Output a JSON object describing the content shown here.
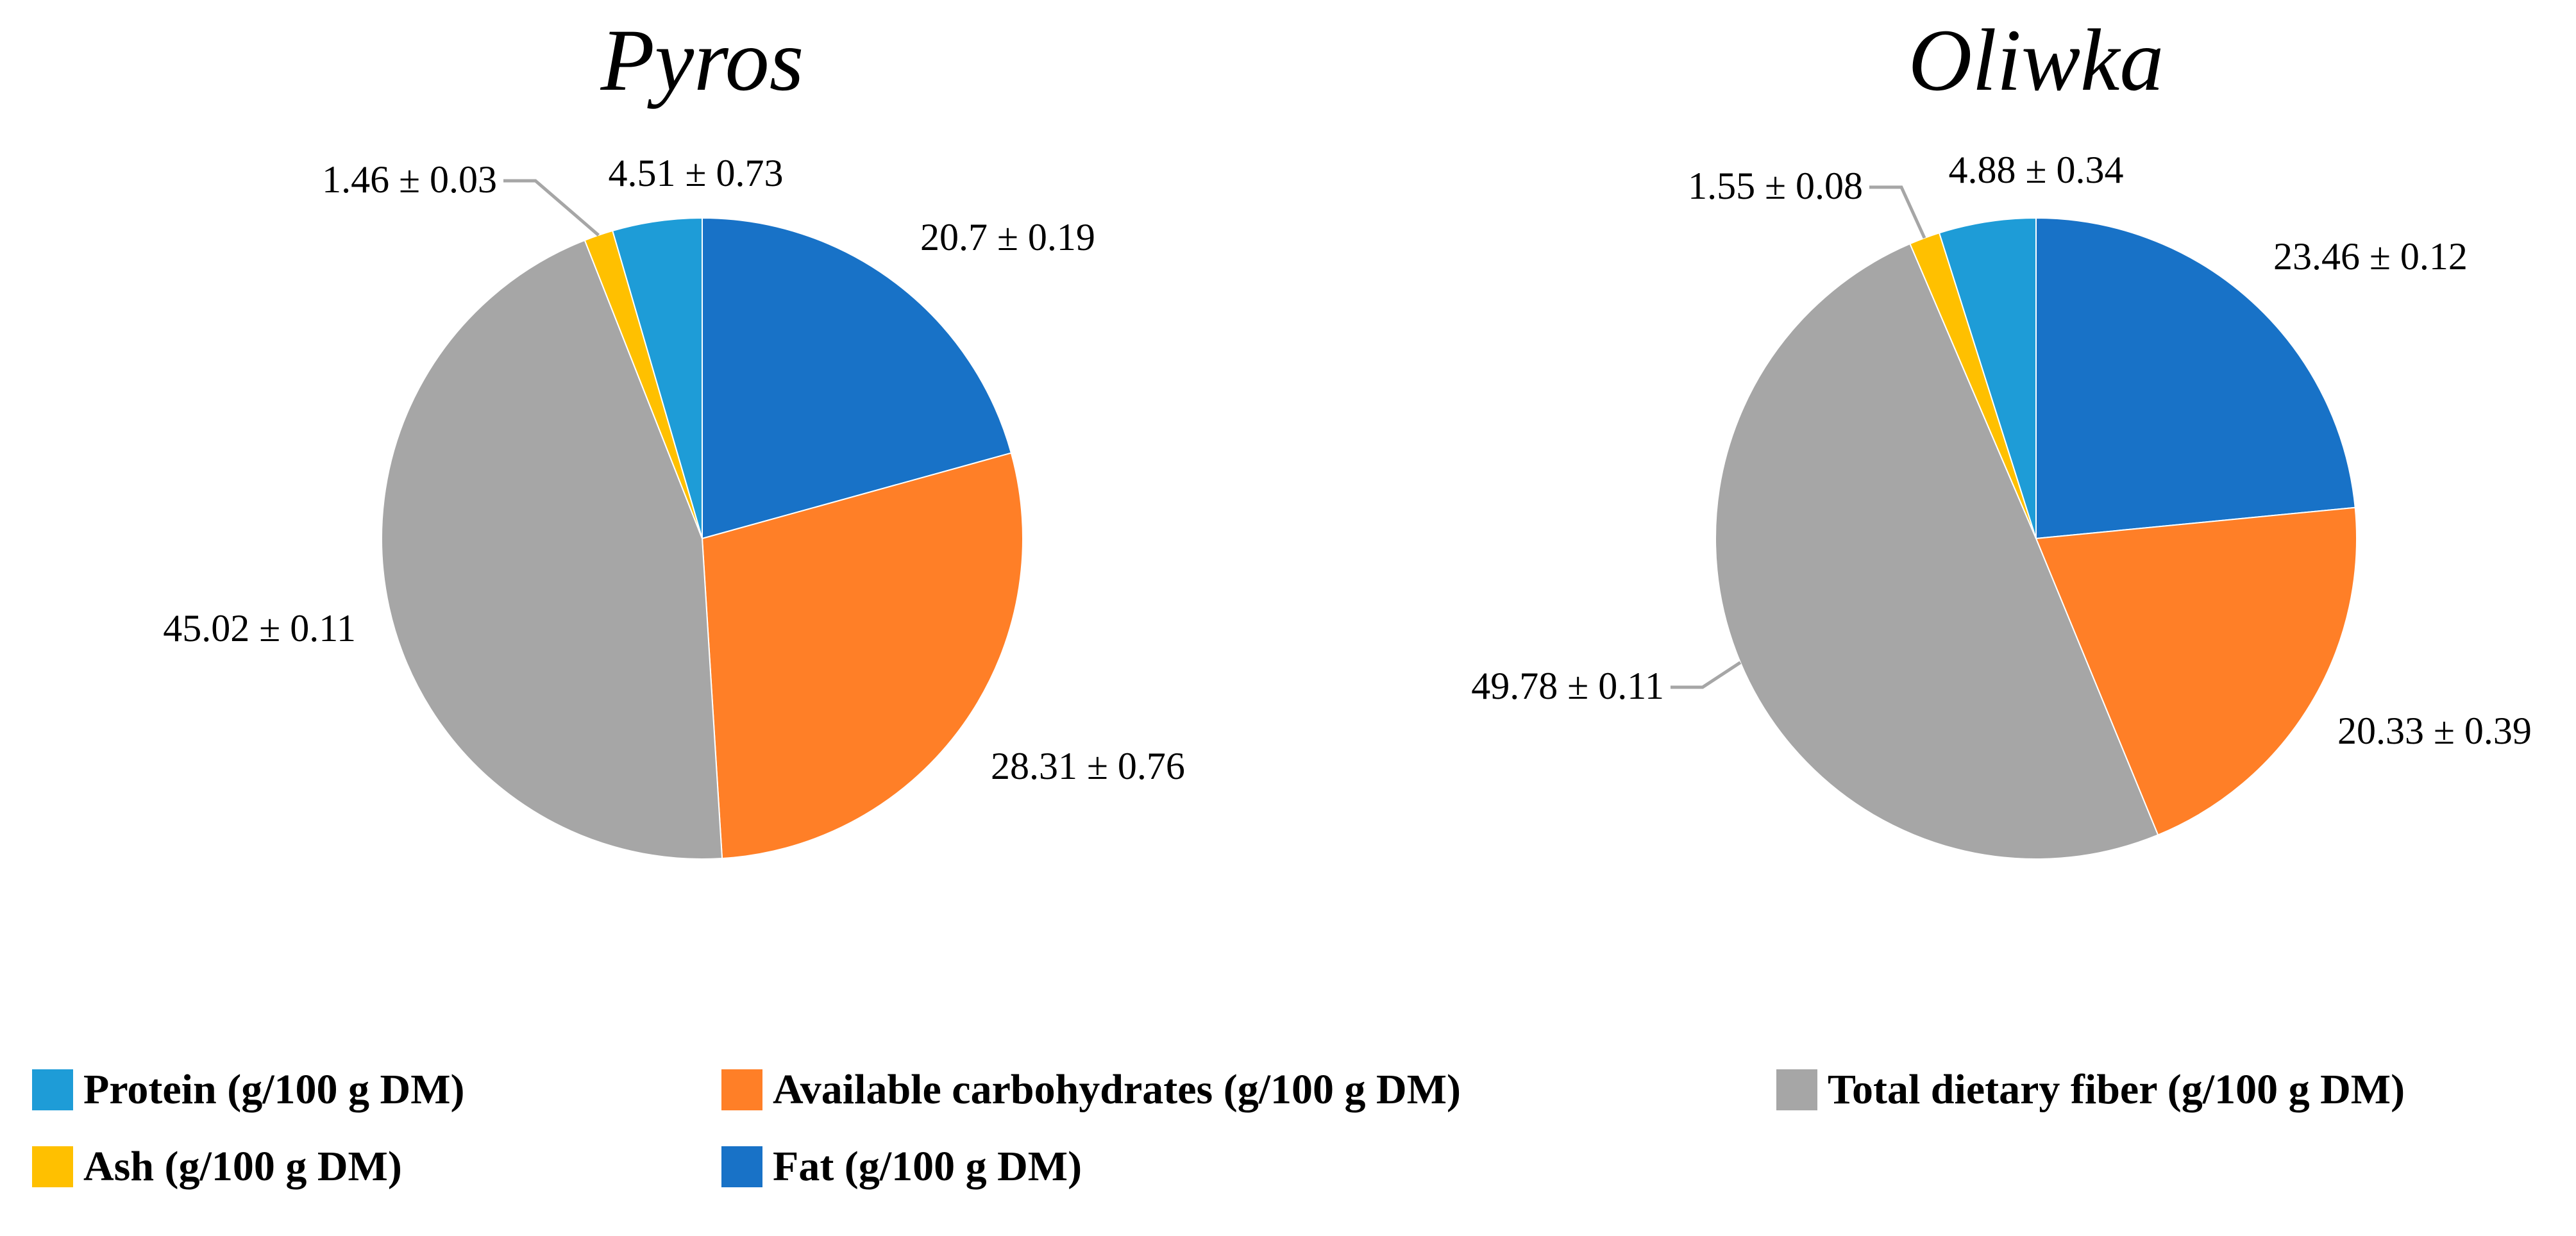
{
  "chart_data": [
    {
      "type": "pie",
      "title": "Pyros",
      "categories": [
        "Fat (g/100 g DM)",
        "Available carbohydrates (g/100 g DM)",
        "Total dietary fiber (g/100 g DM)",
        "Ash (g/100 g DM)",
        "Protein (g/100 g DM)"
      ],
      "values": [
        20.7,
        28.31,
        45.02,
        1.46,
        4.51
      ],
      "labels": [
        "20.7 ± 0.19",
        "28.31 ± 0.76",
        "45.02 ± 0.11",
        "1.46 ± 0.03",
        "4.51 ± 0.73"
      ],
      "colors": [
        "#1872C7",
        "#FF7F27",
        "#A6A6A6",
        "#FFC000",
        "#1E9CD7"
      ]
    },
    {
      "type": "pie",
      "title": "Oliwka",
      "categories": [
        "Fat (g/100 g DM)",
        "Available carbohydrates (g/100 g DM)",
        "Total dietary fiber (g/100 g DM)",
        "Ash (g/100 g DM)",
        "Protein (g/100 g DM)"
      ],
      "values": [
        23.46,
        20.33,
        49.78,
        1.55,
        4.88
      ],
      "labels": [
        "23.46 ± 0.12",
        "20.33 ± 0.39",
        "49.78 ± 0.11",
        "1.55 ± 0.08",
        "4.88 ± 0.34"
      ],
      "colors": [
        "#1872C7",
        "#FF7F27",
        "#A6A6A6",
        "#FFC000",
        "#1E9CD7"
      ]
    }
  ],
  "legend": {
    "items": [
      {
        "label": "Protein (g/100 g DM)",
        "color": "#1E9CD7"
      },
      {
        "label": "Available carbohydrates (g/100 g DM)",
        "color": "#FF7F27"
      },
      {
        "label": "Total dietary fiber (g/100 g DM)",
        "color": "#A6A6A6"
      },
      {
        "label": "Ash (g/100 g DM)",
        "color": "#FFC000"
      },
      {
        "label": "Fat (g/100 g DM)",
        "color": "#1872C7"
      }
    ]
  }
}
